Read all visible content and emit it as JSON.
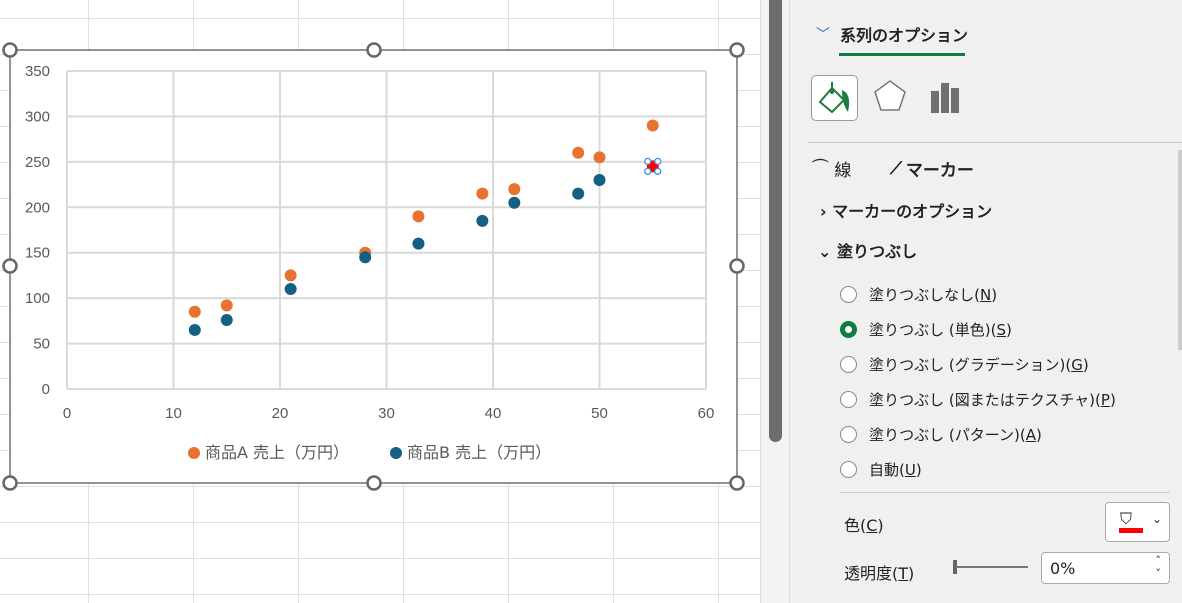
{
  "chart_data": {
    "type": "scatter",
    "title": "",
    "xlabel": "",
    "ylabel": "",
    "xlim": [
      0,
      60
    ],
    "ylim": [
      0,
      350
    ],
    "xticks": [
      0,
      10,
      20,
      30,
      40,
      50,
      60
    ],
    "yticks": [
      0,
      50,
      100,
      150,
      200,
      250,
      300,
      350
    ],
    "grid": true,
    "legend": "bottom",
    "series": [
      {
        "name": "商品A 売上（万円）",
        "color": "#e97132",
        "x": [
          12,
          15,
          21,
          28,
          33,
          39,
          42,
          48,
          50,
          55
        ],
        "y": [
          85,
          92,
          125,
          150,
          190,
          215,
          220,
          260,
          255,
          290
        ]
      },
      {
        "name": "商品B 売上（万円）",
        "color": "#156082",
        "x": [
          12,
          15,
          21,
          28,
          33,
          39,
          42,
          48,
          50,
          55
        ],
        "y": [
          65,
          76,
          110,
          145,
          160,
          185,
          205,
          215,
          230,
          245
        ]
      }
    ],
    "selected_point": {
      "series": 1,
      "index": 9,
      "fill": "#ff0000"
    }
  },
  "panel": {
    "section_title": "系列のオプション",
    "icons": [
      "fill-line-icon",
      "effects-pentagon-icon",
      "series-options-bar-icon"
    ],
    "tab_line": "線",
    "tab_marker": "マーカー",
    "marker_options": "マーカーのオプション",
    "fill": "塗りつぶし",
    "radios": [
      {
        "label": "塗りつぶしなし(",
        "key": "N",
        "checked": false
      },
      {
        "label": "塗りつぶし (単色)(",
        "key": "S",
        "checked": true
      },
      {
        "label": "塗りつぶし (グラデーション)(",
        "key": "G",
        "checked": false
      },
      {
        "label": "塗りつぶし (図またはテクスチャ)(",
        "key": "P",
        "checked": false
      },
      {
        "label": "塗りつぶし (パターン)(",
        "key": "A",
        "checked": false
      },
      {
        "label": "自動(",
        "key": "U",
        "checked": false
      }
    ],
    "color_label": "色(",
    "color_key": "C",
    "color_value": "#ff0000",
    "transparency_label": "透明度(",
    "transparency_key": "T",
    "transparency_value": "0%",
    "close_paren": ")",
    "accent": "#107c41"
  }
}
